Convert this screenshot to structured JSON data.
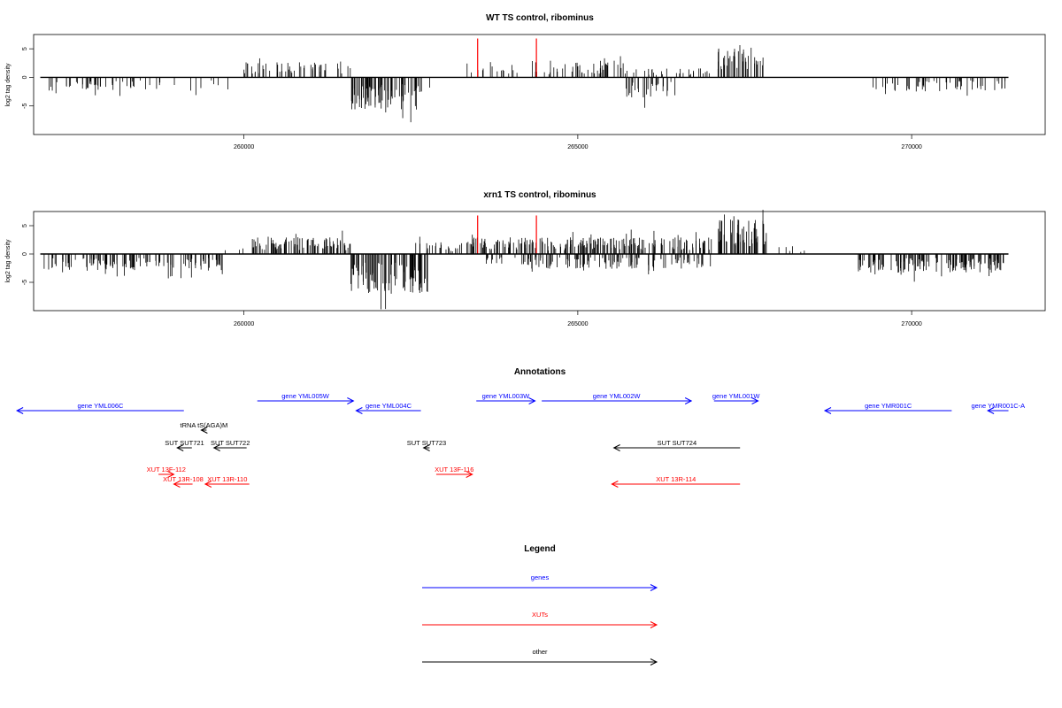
{
  "colors": {
    "gene": "#0000ff",
    "xut": "#ff0000",
    "other": "#000000",
    "marker": "#ff0000",
    "frame": "#000000"
  },
  "chart_data": [
    {
      "type": "bar",
      "title": "WT TS control, ribominus",
      "ylabel": "log2 tag density",
      "xlim": [
        256850,
        272000
      ],
      "ylim": [
        -10,
        7.5
      ],
      "xticks": [
        260000,
        265000,
        270000
      ],
      "xtick_labels": [
        "260000",
        "265000",
        "270000"
      ],
      "yticks": [
        -5,
        0,
        5
      ],
      "ytick_labels": [
        "-5",
        "0",
        "5"
      ],
      "baseline": {
        "x": [
          256950,
          271450
        ],
        "y": 0
      },
      "markers": [
        {
          "x": 263500,
          "y": 6.8
        },
        {
          "x": 264380,
          "y": 6.8
        }
      ],
      "segments": [
        {
          "x": [
            257000,
            258800
          ],
          "sign": -1,
          "density": 0.35,
          "mean": 1.5
        },
        {
          "x": [
            258800,
            259800
          ],
          "sign": -1,
          "density": 0.1,
          "mean": 1.4
        },
        {
          "x": [
            260000,
            261600
          ],
          "sign": 1,
          "density": 0.45,
          "mean": 1.6
        },
        {
          "x": [
            261600,
            262650
          ],
          "sign": -1,
          "density": 0.95,
          "mean": 3.4
        },
        {
          "x": [
            262650,
            262900
          ],
          "sign": -1,
          "density": 0.15,
          "mean": 1.5
        },
        {
          "x": [
            263300,
            264800
          ],
          "sign": 1,
          "density": 0.25,
          "mean": 1.2
        },
        {
          "x": [
            264800,
            265700
          ],
          "sign": 1,
          "density": 0.5,
          "mean": 1.6
        },
        {
          "x": [
            265700,
            266500
          ],
          "sign": -1,
          "density": 0.45,
          "mean": 2.2
        },
        {
          "x": [
            265700,
            267000
          ],
          "sign": 1,
          "density": 0.3,
          "mean": 1.0
        },
        {
          "x": [
            267100,
            267600
          ],
          "sign": 1,
          "density": 0.85,
          "mean": 3.2
        },
        {
          "x": [
            267600,
            267850
          ],
          "sign": 1,
          "density": 0.5,
          "mean": 2.6
        },
        {
          "x": [
            269300,
            271400
          ],
          "sign": -1,
          "density": 0.35,
          "mean": 1.5
        }
      ]
    },
    {
      "type": "bar",
      "title": "xrn1 TS control, ribominus",
      "ylabel": "log2 tag density",
      "xlim": [
        256850,
        272000
      ],
      "ylim": [
        -10,
        7.5
      ],
      "xticks": [
        260000,
        265000,
        270000
      ],
      "xtick_labels": [
        "260000",
        "265000",
        "270000"
      ],
      "yticks": [
        -5,
        0,
        5
      ],
      "ytick_labels": [
        "-5",
        "0",
        "5"
      ],
      "baseline": {
        "x": [
          256950,
          271450
        ],
        "y": 0
      },
      "markers": [
        {
          "x": 263500,
          "y": 6.8
        },
        {
          "x": 264380,
          "y": 6.8
        }
      ],
      "segments": [
        {
          "x": [
            257000,
            259700
          ],
          "sign": -1,
          "density": 0.6,
          "mean": 1.8
        },
        {
          "x": [
            259700,
            260000
          ],
          "sign": 1,
          "density": 0.15,
          "mean": 0.8
        },
        {
          "x": [
            260100,
            261600
          ],
          "sign": 1,
          "density": 0.8,
          "mean": 1.8
        },
        {
          "x": [
            261600,
            262750
          ],
          "sign": -1,
          "density": 1.0,
          "mean": 4.2
        },
        {
          "x": [
            262500,
            263400
          ],
          "sign": 1,
          "density": 0.4,
          "mean": 1.3
        },
        {
          "x": [
            263400,
            267000
          ],
          "sign": 1,
          "density": 0.75,
          "mean": 1.8
        },
        {
          "x": [
            263600,
            267000
          ],
          "sign": -1,
          "density": 0.5,
          "mean": 1.6
        },
        {
          "x": [
            267100,
            267850
          ],
          "sign": 1,
          "density": 1.0,
          "mean": 3.8
        },
        {
          "x": [
            268000,
            268400
          ],
          "sign": 1,
          "density": 0.2,
          "mean": 0.9
        },
        {
          "x": [
            269200,
            271400
          ],
          "sign": -1,
          "density": 0.85,
          "mean": 2.0
        }
      ]
    }
  ],
  "annotations": {
    "title": "Annotations",
    "features": [
      {
        "label": "gene YML006C",
        "type": "gene",
        "x": [
          256600,
          259100
        ],
        "strand": "-",
        "row": 1
      },
      {
        "label": "gene YML005W",
        "type": "gene",
        "x": [
          260200,
          261640
        ],
        "strand": "+",
        "row": 0
      },
      {
        "label": "gene YML004C",
        "type": "gene",
        "x": [
          261680,
          262650
        ],
        "strand": "-",
        "row": 1
      },
      {
        "label": "gene YML003W",
        "type": "gene",
        "x": [
          263480,
          264360
        ],
        "strand": "+",
        "row": 0
      },
      {
        "label": "gene YML002W",
        "type": "gene",
        "x": [
          264460,
          266700
        ],
        "strand": "+",
        "row": 0
      },
      {
        "label": "gene YML001W",
        "type": "gene",
        "x": [
          267040,
          267700
        ],
        "strand": "+",
        "row": 0
      },
      {
        "label": "gene YMR001C",
        "type": "gene",
        "x": [
          268700,
          270600
        ],
        "strand": "-",
        "row": 1
      },
      {
        "label": "gene YMR001C-A",
        "type": "gene",
        "x": [
          271140,
          271450
        ],
        "strand": "-",
        "row": 1
      },
      {
        "label": "tRNA tS(AGA)M",
        "type": "other",
        "x": [
          259360,
          259440
        ],
        "strand": "-",
        "row": 2
      },
      {
        "label": "SUT SUT721",
        "type": "other",
        "x": [
          259000,
          259220
        ],
        "strand": "-",
        "row": 3
      },
      {
        "label": "SUT SUT722",
        "type": "other",
        "x": [
          259550,
          260040
        ],
        "strand": "-",
        "row": 3
      },
      {
        "label": "SUT SUT723",
        "type": "other",
        "x": [
          262690,
          262780
        ],
        "strand": "-",
        "row": 3
      },
      {
        "label": "SUT SUT724",
        "type": "other",
        "x": [
          265540,
          267430
        ],
        "strand": "-",
        "row": 3
      },
      {
        "label": "XUT 13F-112",
        "type": "xut",
        "x": [
          258720,
          258950
        ],
        "strand": "+",
        "row": 4
      },
      {
        "label": "XUT 13R-108",
        "type": "xut",
        "x": [
          258950,
          259230
        ],
        "strand": "-",
        "row": 5
      },
      {
        "label": "XUT 13R-110",
        "type": "xut",
        "x": [
          259420,
          260080
        ],
        "strand": "-",
        "row": 5
      },
      {
        "label": "XUT 13F-116",
        "type": "xut",
        "x": [
          262880,
          263420
        ],
        "strand": "+",
        "row": 4
      },
      {
        "label": "XUT 13R-114",
        "type": "xut",
        "x": [
          265510,
          267430
        ],
        "strand": "-",
        "row": 5
      }
    ]
  },
  "legend": {
    "title": "Legend",
    "items": [
      {
        "label": "genes",
        "type": "gene"
      },
      {
        "label": "XUTs",
        "type": "xut"
      },
      {
        "label": "other",
        "type": "other"
      }
    ]
  }
}
